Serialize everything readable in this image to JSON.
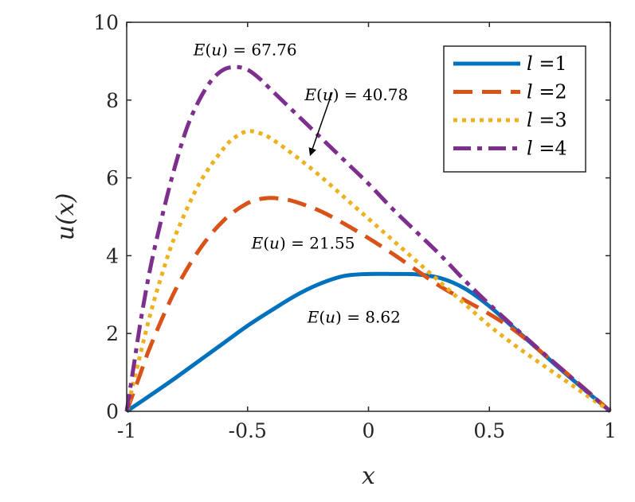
{
  "chart_data": {
    "type": "line",
    "xlabel": "x",
    "ylabel": "u(x)",
    "xlim": [
      -1,
      1
    ],
    "ylim": [
      0,
      10
    ],
    "xticks": [
      -1,
      -0.5,
      0,
      0.5,
      1
    ],
    "xtick_labels": [
      "-1",
      "-0.5",
      "0",
      "0.5",
      "1"
    ],
    "yticks": [
      0,
      2,
      4,
      6,
      8,
      10
    ],
    "ytick_labels": [
      "0",
      "2",
      "4",
      "6",
      "8",
      "10"
    ],
    "grid": false,
    "legend_position": "top-right",
    "series": [
      {
        "name": "l =1",
        "label_var": "l",
        "label_val": "=1",
        "color": "#0072BD",
        "style": "solid",
        "x": [
          -1,
          -0.9,
          -0.8,
          -0.7,
          -0.6,
          -0.5,
          -0.4,
          -0.3,
          -0.2,
          -0.1,
          0,
          0.1,
          0.2,
          0.3,
          0.4,
          0.5,
          0.6,
          0.7,
          0.8,
          0.9,
          1
        ],
        "y": [
          0,
          0.42,
          0.85,
          1.3,
          1.75,
          2.2,
          2.6,
          2.98,
          3.28,
          3.48,
          3.53,
          3.53,
          3.52,
          3.42,
          3.15,
          2.7,
          2.15,
          1.6,
          1.05,
          0.52,
          0
        ]
      },
      {
        "name": "l =2",
        "label_var": "l",
        "label_val": "=2",
        "color": "#D95319",
        "style": "dashed",
        "x": [
          -1,
          -0.95,
          -0.9,
          -0.8,
          -0.7,
          -0.6,
          -0.5,
          -0.42,
          -0.35,
          -0.3,
          -0.2,
          -0.1,
          0,
          0.1,
          0.2,
          0.3,
          0.4,
          0.5,
          0.6,
          0.7,
          0.8,
          0.9,
          1
        ],
        "y": [
          0,
          0.85,
          1.7,
          3.1,
          4.15,
          4.9,
          5.35,
          5.48,
          5.45,
          5.38,
          5.15,
          4.82,
          4.45,
          4.05,
          3.62,
          3.2,
          2.85,
          2.5,
          2.1,
          1.6,
          1.08,
          0.55,
          0
        ]
      },
      {
        "name": "l =3",
        "label_var": "l",
        "label_val": "=3",
        "color": "#EDB120",
        "style": "dotted",
        "x": [
          -1,
          -0.95,
          -0.9,
          -0.85,
          -0.8,
          -0.7,
          -0.6,
          -0.55,
          -0.5,
          -0.45,
          -0.4,
          -0.3,
          -0.2,
          -0.1,
          0,
          0.1,
          0.2,
          0.3,
          0.4,
          0.5,
          0.6,
          0.7,
          0.8,
          0.9,
          1
        ],
        "y": [
          0,
          1.3,
          2.55,
          3.6,
          4.5,
          5.85,
          6.75,
          7.05,
          7.2,
          7.15,
          7.0,
          6.55,
          6.05,
          5.5,
          4.95,
          4.4,
          3.85,
          3.3,
          2.75,
          2.2,
          1.72,
          1.28,
          0.85,
          0.42,
          0
        ]
      },
      {
        "name": "l =4",
        "label_var": "l",
        "label_val": "=4",
        "color": "#7E2F8E",
        "style": "dashdot",
        "x": [
          -1,
          -0.97,
          -0.94,
          -0.9,
          -0.85,
          -0.8,
          -0.75,
          -0.7,
          -0.65,
          -0.6,
          -0.55,
          -0.5,
          -0.45,
          -0.4,
          -0.3,
          -0.2,
          -0.1,
          0,
          0.1,
          0.2,
          0.3,
          0.4,
          0.5,
          0.6,
          0.7,
          0.8,
          0.9,
          1
        ],
        "y": [
          0,
          1.2,
          2.4,
          3.75,
          5.1,
          6.3,
          7.3,
          8.0,
          8.5,
          8.78,
          8.85,
          8.78,
          8.55,
          8.25,
          7.65,
          7.05,
          6.45,
          5.85,
          5.2,
          4.6,
          4.0,
          3.35,
          2.75,
          2.18,
          1.62,
          1.08,
          0.54,
          0
        ]
      }
    ],
    "annotations": [
      {
        "prefix": "E",
        "arg": "u",
        "value": "= 67.76",
        "x": -0.51,
        "y": 9.15
      },
      {
        "prefix": "E",
        "arg": "u",
        "value": "= 40.78",
        "x": -0.05,
        "y": 8.0
      },
      {
        "prefix": "E",
        "arg": "u",
        "value": "= 21.55",
        "x": -0.27,
        "y": 4.18
      },
      {
        "prefix": "E",
        "arg": "u",
        "value": "= 8.62",
        "x": -0.06,
        "y": 2.28
      }
    ],
    "arrow": {
      "from": [
        -0.15,
        8.2
      ],
      "to": [
        -0.24,
        6.6
      ]
    }
  }
}
